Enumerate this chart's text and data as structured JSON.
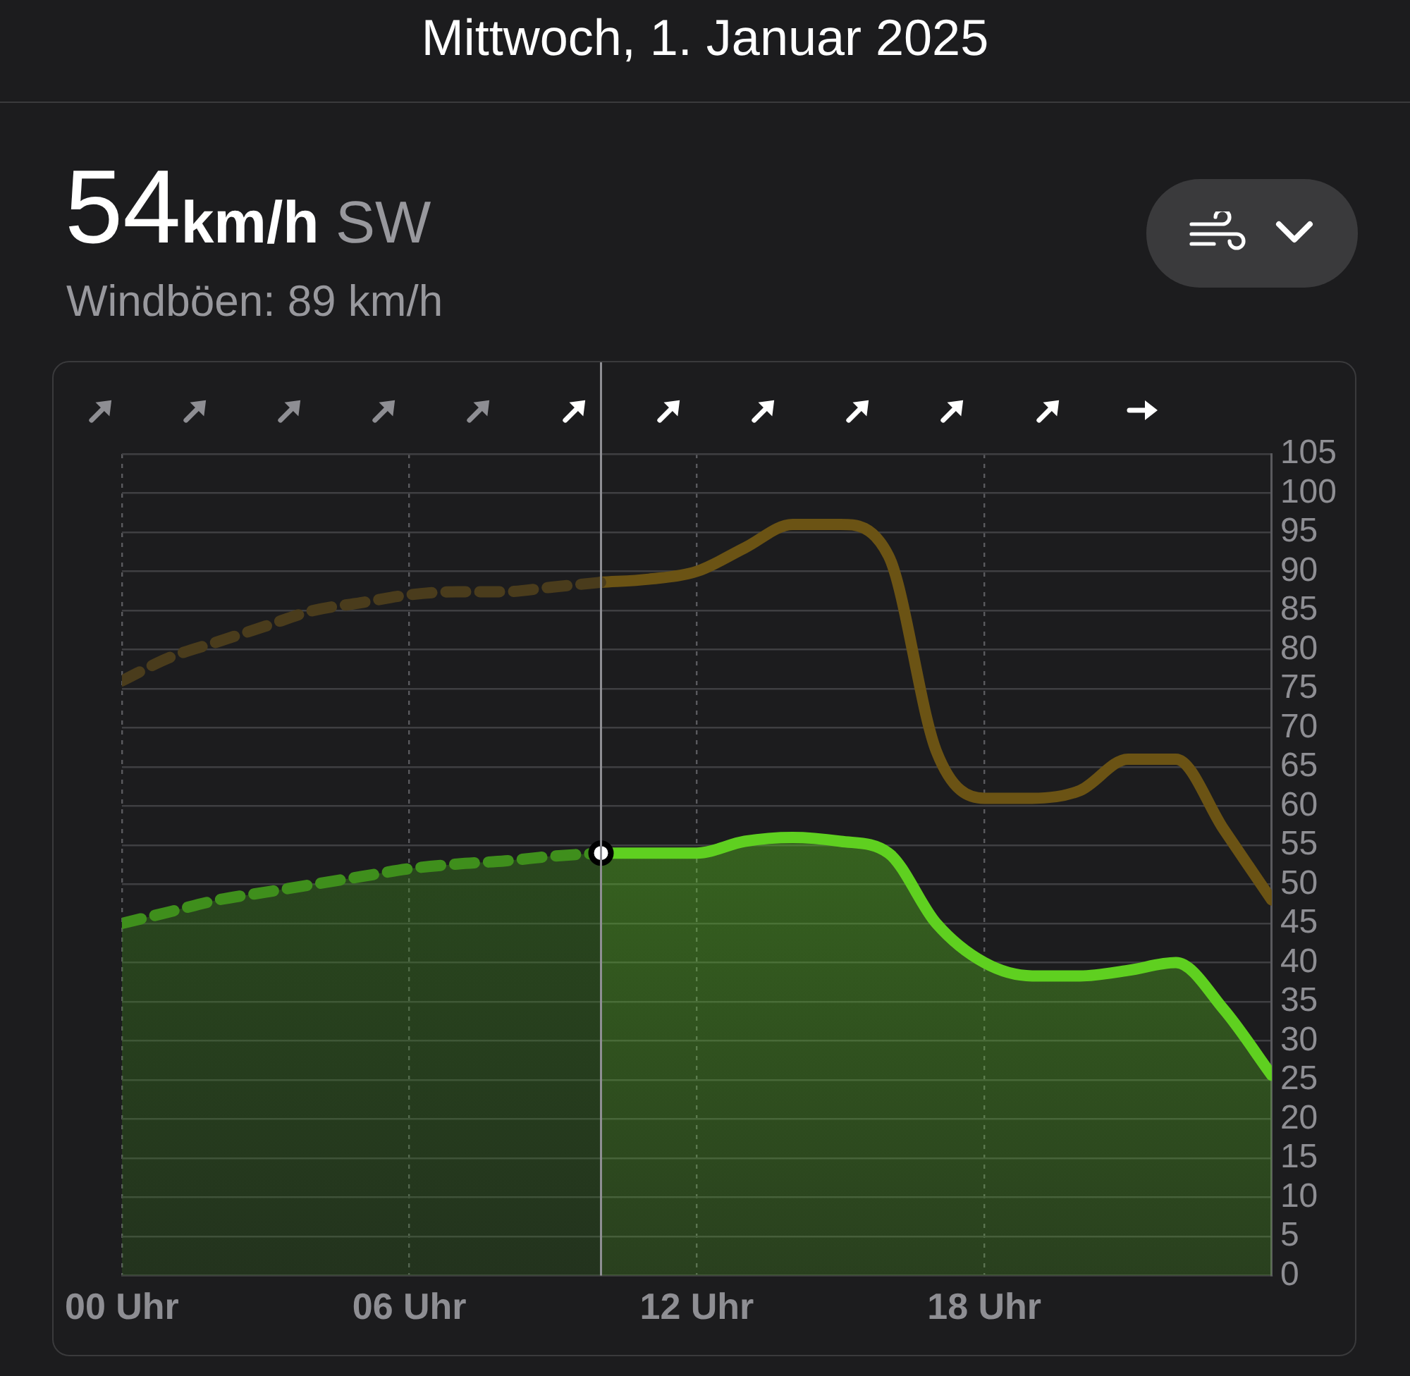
{
  "chart_data": {
    "type": "line",
    "title": "Mittwoch, 1. Januar 2025",
    "subtitle": "54km/h SW",
    "annotations": [
      "Windböen: 89 km/h"
    ],
    "xlim": [
      0,
      24
    ],
    "xticks": [
      {
        "value": 0,
        "label": "00 Uhr"
      },
      {
        "value": 6,
        "label": "06 Uhr"
      },
      {
        "value": 12,
        "label": "12 Uhr"
      },
      {
        "value": 18,
        "label": "18 Uhr"
      }
    ],
    "ylim": [
      0,
      105
    ],
    "yticks": [
      0,
      5,
      10,
      15,
      20,
      25,
      30,
      35,
      40,
      45,
      50,
      55,
      60,
      65,
      70,
      75,
      80,
      85,
      90,
      95,
      100,
      105
    ],
    "grid": true,
    "legend": false,
    "marker": "none",
    "ref_lines": [
      {
        "axis": "x",
        "value": 10,
        "color": "#8e8e93"
      }
    ],
    "series": [
      {
        "color": "#4a3c1c",
        "line_style": "dashed",
        "x": [
          0,
          1,
          2,
          3,
          4,
          5,
          6,
          7,
          8,
          9,
          10
        ],
        "values": [
          76,
          79,
          81,
          83,
          85,
          86,
          87,
          87.4,
          87.4,
          88,
          88.6
        ]
      },
      {
        "color": "#6b5314",
        "line_style": "solid",
        "x": [
          10,
          11,
          12,
          13,
          14,
          15,
          16,
          17,
          18,
          19,
          20,
          21,
          22,
          23,
          24
        ],
        "values": [
          88.6,
          89,
          90,
          93,
          96,
          96,
          92,
          67,
          61,
          61,
          62,
          66,
          66,
          57,
          48
        ]
      },
      {
        "type": "area",
        "color": "#3f8f1c",
        "line_style": "dashed",
        "x": [
          0,
          1,
          2,
          3,
          4,
          5,
          6,
          7,
          8,
          9,
          10
        ],
        "values": [
          45,
          46.5,
          48,
          49,
          50,
          51,
          52,
          52.6,
          53,
          53.6,
          54
        ]
      },
      {
        "type": "area",
        "color": "#5fd020",
        "line_style": "solid",
        "x": [
          10,
          11,
          12,
          13,
          14,
          15,
          16,
          17,
          18,
          19,
          20,
          21,
          22,
          23,
          24
        ],
        "values": [
          54,
          54,
          54,
          55.5,
          56,
          55.5,
          54,
          45,
          40,
          38.3,
          38.3,
          39,
          40,
          34,
          25.6
        ]
      },
      {
        "type": "scatter",
        "color": "#ffffff",
        "marker": "circle",
        "x": [
          10
        ],
        "values": [
          54
        ]
      }
    ]
  }
}
